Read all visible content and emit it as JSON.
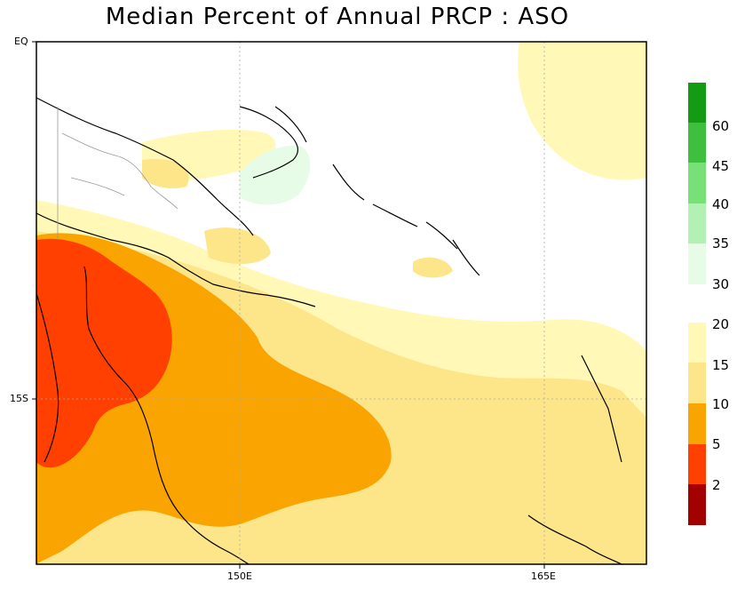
{
  "title": "Median Percent of Annual PRCP   :   ASO",
  "axes": {
    "y_ticks": [
      "EQ",
      "15S"
    ],
    "x_ticks": [
      "150E",
      "165E"
    ]
  },
  "colorbar_upper": {
    "labels": [
      "60",
      "45",
      "40",
      "35",
      "30"
    ],
    "colors": [
      "#139b13",
      "#3ec03e",
      "#77e077",
      "#b3f0b3",
      "#e6fce6"
    ]
  },
  "colorbar_lower": {
    "labels": [
      "20",
      "15",
      "10",
      "5",
      "2"
    ],
    "colors": [
      "#fff8b6",
      "#fde58a",
      "#f9a400",
      "#ff4000",
      "#a30000"
    ]
  }
}
